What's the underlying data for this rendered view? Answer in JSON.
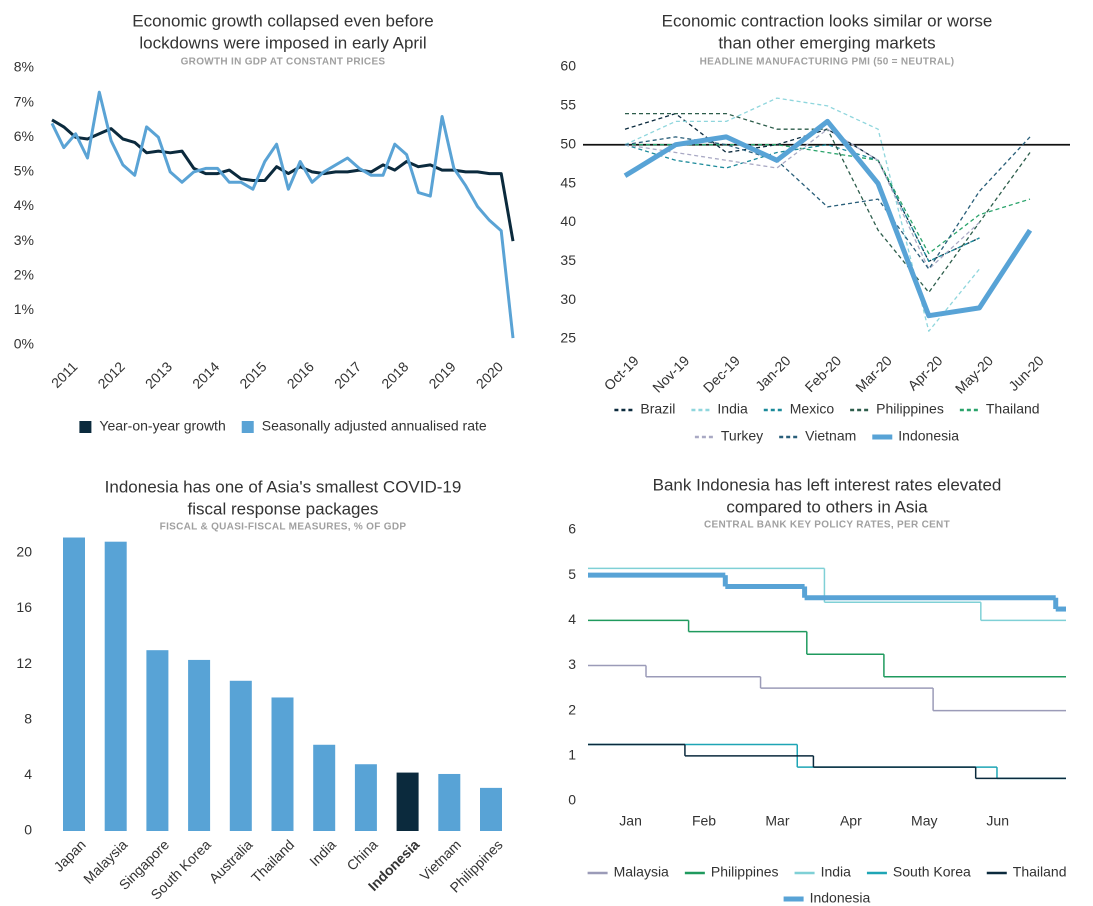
{
  "chart_data": [
    {
      "type": "line",
      "title": [
        "Economic growth collapsed even before",
        "lockdowns were imposed in early April"
      ],
      "subtitle": "GROWTH IN GDP AT CONSTANT PRICES",
      "categories": [
        null,
        "2011",
        null,
        null,
        null,
        "2012",
        null,
        null,
        null,
        "2013",
        null,
        null,
        null,
        "2014",
        null,
        null,
        null,
        "2015",
        null,
        null,
        null,
        "2016",
        null,
        null,
        null,
        "2017",
        null,
        null,
        null,
        "2018",
        null,
        null,
        null,
        "2019",
        null,
        null,
        null,
        "2020",
        null,
        null
      ],
      "series": [
        {
          "name": "Year-on-year growth",
          "color": "#0b2a3d",
          "style": "solid",
          "values": [
            6.5,
            6.3,
            6.0,
            5.95,
            6.1,
            6.25,
            5.95,
            5.85,
            5.55,
            5.6,
            5.55,
            5.6,
            5.1,
            4.95,
            4.95,
            5.05,
            4.8,
            4.75,
            4.75,
            5.15,
            4.95,
            5.15,
            5.0,
            4.95,
            5.0,
            5.0,
            5.05,
            5.0,
            5.2,
            5.05,
            5.3,
            5.15,
            5.2,
            5.05,
            5.05,
            5.0,
            5.0,
            4.95,
            4.95,
            3.0
          ]
        },
        {
          "name": "Seasonally adjusted annualised rate",
          "color": "#5aa3d5",
          "style": "solid",
          "values": [
            6.4,
            5.7,
            6.1,
            5.4,
            7.3,
            5.9,
            5.2,
            4.9,
            6.3,
            6.0,
            5.0,
            4.7,
            5.0,
            5.1,
            5.1,
            4.7,
            4.7,
            4.5,
            5.3,
            5.8,
            4.5,
            5.3,
            4.7,
            5.0,
            5.2,
            5.4,
            5.1,
            4.9,
            4.9,
            5.8,
            5.5,
            4.4,
            4.3,
            6.6,
            5.1,
            4.6,
            4.0,
            3.6,
            3.3,
            0.2
          ]
        }
      ],
      "ylim": [
        0,
        8
      ],
      "yticks": [
        {
          "value": 0,
          "label": "0%"
        },
        {
          "value": 1,
          "label": "1%"
        },
        {
          "value": 2,
          "label": "2%"
        },
        {
          "value": 3,
          "label": "3%"
        },
        {
          "value": 4,
          "label": "4%"
        },
        {
          "value": 5,
          "label": "5%"
        },
        {
          "value": 6,
          "label": "6%"
        },
        {
          "value": 7,
          "label": "7%"
        },
        {
          "value": 8,
          "label": "8%"
        }
      ],
      "legend": "bottom",
      "legend_marker": "square"
    },
    {
      "type": "line",
      "title": [
        "Economic contraction looks similar or worse",
        "than other emerging markets"
      ],
      "subtitle": "HEADLINE MANUFACTURING PMI (50 = NEUTRAL)",
      "categories": [
        "Oct-19",
        "Nov-19",
        "Dec-19",
        "Jan-20",
        "Feb-20",
        "Mar-20",
        "Apr-20",
        "May-20",
        "Jun-20"
      ],
      "series": [
        {
          "name": "Brazil",
          "color": "#0b2a3d",
          "style": "dashed",
          "values": [
            52,
            54,
            49,
            50,
            52,
            48,
            35,
            38,
            null
          ]
        },
        {
          "name": "India",
          "color": "#8fd6dd",
          "style": "dashed",
          "values": [
            50,
            53,
            53,
            56,
            55,
            52,
            26,
            34,
            null
          ]
        },
        {
          "name": "Mexico",
          "color": "#1b8a9a",
          "style": "dashed",
          "values": [
            50,
            48,
            47,
            49,
            50,
            48,
            35,
            38,
            null
          ]
        },
        {
          "name": "Philippines",
          "color": "#2d5d4b",
          "style": "dashed",
          "values": [
            54,
            54,
            54,
            52,
            52,
            39,
            31,
            40,
            49
          ]
        },
        {
          "name": "Thailand",
          "color": "#2aa36b",
          "style": "dashed",
          "values": [
            50,
            50,
            50,
            50,
            49,
            48,
            36,
            41,
            43
          ]
        },
        {
          "name": "Turkey",
          "color": "#a9a9c4",
          "style": "dashed",
          "values": [
            50,
            49,
            48,
            47,
            52,
            48,
            34,
            40,
            null
          ]
        },
        {
          "name": "Vietnam",
          "color": "#2a5f7a",
          "style": "dashed",
          "values": [
            50,
            51,
            50,
            48,
            42,
            43,
            34,
            44,
            51
          ]
        },
        {
          "name": "Indonesia",
          "color": "#58a3d6",
          "style": "bold",
          "values": [
            46,
            50,
            51,
            48,
            53,
            45,
            28,
            29,
            39
          ]
        }
      ],
      "hline": 50,
      "ylim": [
        25,
        60
      ],
      "yticks": [
        25,
        30,
        35,
        40,
        45,
        50,
        55,
        60
      ],
      "legend": "bottom",
      "legend_marker": "line"
    },
    {
      "type": "bar",
      "title": [
        "Indonesia has one of Asia's smallest COVID-19",
        "fiscal response packages"
      ],
      "subtitle": "FISCAL & QUASI-FISCAL MEASURES, % OF GDP",
      "categories": [
        "Japan",
        "Malaysia",
        "Singapore",
        "South Korea",
        "Australia",
        "Thailand",
        "India",
        "China",
        "Indonesia",
        "Vietnam",
        "Philippines"
      ],
      "values": [
        21.1,
        20.8,
        13.0,
        12.3,
        10.8,
        9.6,
        6.2,
        4.8,
        4.2,
        4.1,
        3.1
      ],
      "colors": [
        "#58a3d6",
        "#58a3d6",
        "#58a3d6",
        "#58a3d6",
        "#58a3d6",
        "#58a3d6",
        "#58a3d6",
        "#58a3d6",
        "#0b2a3d",
        "#58a3d6",
        "#58a3d6"
      ],
      "highlight_index": 8,
      "ylim": [
        0,
        22
      ],
      "yticks": [
        0,
        4,
        8,
        12,
        16,
        20
      ]
    },
    {
      "type": "line",
      "drawstyle": "steps-post",
      "title": [
        "Bank Indonesia has left interest rates elevated",
        "compared to others in Asia"
      ],
      "subtitle": "CENTRAL BANK KEY POLICY RATES, PER CENT",
      "xlim": [
        0.42,
        6.93
      ],
      "xticks": [
        {
          "value": 1,
          "label": "Jan"
        },
        {
          "value": 2,
          "label": "Feb"
        },
        {
          "value": 3,
          "label": "Mar"
        },
        {
          "value": 4,
          "label": "Apr"
        },
        {
          "value": 5,
          "label": "May"
        },
        {
          "value": 6,
          "label": "Jun"
        }
      ],
      "series": [
        {
          "name": "Malaysia",
          "color": "#9b9bb8",
          "style": "solid",
          "x": [
            0.42,
            1.21,
            2.77,
            5.12
          ],
          "values": [
            3.0,
            2.75,
            2.5,
            2.0
          ]
        },
        {
          "name": "Philippines",
          "color": "#1f9a5e",
          "style": "solid",
          "x": [
            0.42,
            1.79,
            3.4,
            4.45
          ],
          "values": [
            4.0,
            3.75,
            3.25,
            2.75
          ]
        },
        {
          "name": "India",
          "color": "#7fd0d6",
          "style": "solid",
          "x": [
            0.42,
            3.64,
            5.77
          ],
          "values": [
            5.15,
            4.4,
            4.0
          ]
        },
        {
          "name": "South Korea",
          "color": "#1ea5b5",
          "style": "solid",
          "x": [
            0.42,
            3.27,
            5.99
          ],
          "values": [
            1.25,
            0.75,
            0.5
          ]
        },
        {
          "name": "Thailand",
          "color": "#0b2a3d",
          "style": "solid",
          "x": [
            0.42,
            1.74,
            3.49,
            5.7
          ],
          "values": [
            1.25,
            1.0,
            0.75,
            0.5
          ]
        },
        {
          "name": "Indonesia",
          "color": "#58a3d6",
          "style": "bold",
          "x": [
            0.42,
            2.29,
            3.37,
            6.79
          ],
          "values": [
            5.0,
            4.75,
            4.5,
            4.25
          ]
        }
      ],
      "ylim": [
        0,
        6
      ],
      "yticks": [
        0,
        1,
        2,
        3,
        4,
        5,
        6
      ],
      "legend": "bottom",
      "legend_marker": "line"
    }
  ]
}
